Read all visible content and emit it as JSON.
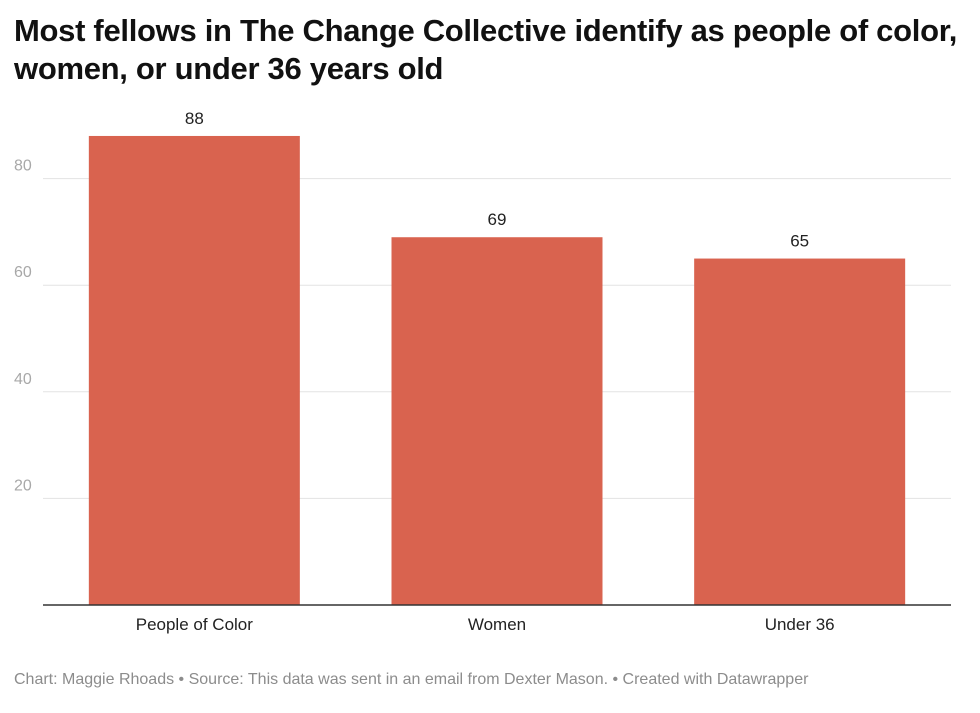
{
  "title": "Most fellows in The Change Collective identify as people of color, women, or under 36 years old",
  "footer": {
    "chart_credit": "Chart: Maggie Rhoads",
    "source": "Source: This data was sent in an email from Dexter Mason.",
    "created_with": "Created with Datawrapper",
    "separator": " • "
  },
  "colors": {
    "bar": "#d9634f",
    "grid": "#e3e3e3",
    "axis": "#333333",
    "tick_label": "#a8a8a8",
    "category_label": "#222222",
    "value_label": "#222222"
  },
  "chart_data": {
    "type": "bar",
    "title": "Most fellows in The Change Collective identify as people of color, women, or under 36 years old",
    "categories": [
      "People of Color",
      "Women",
      "Under 36"
    ],
    "values": [
      88,
      69,
      65
    ],
    "xlabel": "",
    "ylabel": "",
    "ylim": [
      0,
      92
    ],
    "yticks": [
      20,
      40,
      60,
      80
    ],
    "grid": true,
    "legend": "none",
    "data_labels": true
  }
}
